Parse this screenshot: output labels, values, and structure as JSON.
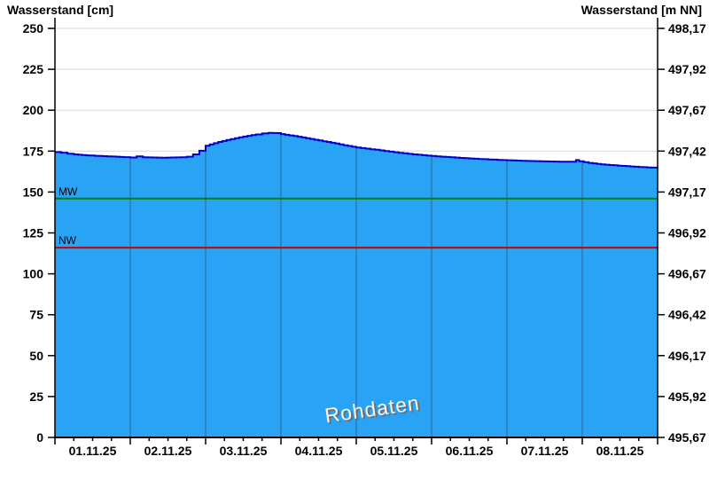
{
  "titles": {
    "left": "Wasserstand [cm]",
    "right": "Wasserstand [m NN]"
  },
  "watermark": "Rohdaten",
  "chart_data": {
    "type": "area",
    "title": "",
    "x_unit": "hours since 01.11.25 00:00",
    "x_range_hours": [
      0,
      192
    ],
    "x_tick_labels": [
      "01.11.25",
      "02.11.25",
      "03.11.25",
      "04.11.25",
      "05.11.25",
      "06.11.25",
      "07.11.25",
      "08.11.25"
    ],
    "x_minor_tick_hours": 6,
    "y_left": {
      "label": "Wasserstand [cm]",
      "min": 0,
      "max": 250,
      "tick_step": 25,
      "tick_labels": [
        "0",
        "25",
        "50",
        "75",
        "100",
        "125",
        "150",
        "175",
        "200",
        "225",
        "250"
      ]
    },
    "y_right": {
      "label": "Wasserstand [m NN]",
      "min": 495.67,
      "max": 498.17,
      "tick_step": 0.25,
      "tick_labels": [
        "495,67",
        "495,92",
        "496,17",
        "496,42",
        "496,67",
        "496,92",
        "497,17",
        "497,42",
        "497,67",
        "497,92",
        "498,17"
      ]
    },
    "reference_lines": [
      {
        "name": "MW",
        "value_cm": 146,
        "color": "#008000"
      },
      {
        "name": "NW",
        "value_cm": 116,
        "color": "#cc0000"
      }
    ],
    "series": [
      {
        "name": "Rohdaten",
        "unit": "cm",
        "points_h_cm": [
          [
            0,
            174.4
          ],
          [
            2,
            174.0
          ],
          [
            4,
            173.4
          ],
          [
            6,
            173.0
          ],
          [
            10,
            172.4
          ],
          [
            14,
            172.0
          ],
          [
            18,
            171.7
          ],
          [
            22,
            171.3
          ],
          [
            24,
            171.1
          ],
          [
            26,
            171.8
          ],
          [
            28,
            171.2
          ],
          [
            34,
            171.0
          ],
          [
            40,
            171.2
          ],
          [
            42,
            171.6
          ],
          [
            44,
            173.0
          ],
          [
            46,
            175.2
          ],
          [
            48,
            178.3
          ],
          [
            52,
            180.6
          ],
          [
            56,
            182.4
          ],
          [
            60,
            183.9
          ],
          [
            64,
            185.2
          ],
          [
            66,
            185.8
          ],
          [
            68,
            186.1
          ],
          [
            71,
            186.0
          ],
          [
            72,
            185.4
          ],
          [
            76,
            184.2
          ],
          [
            80,
            182.9
          ],
          [
            84,
            181.5
          ],
          [
            88,
            180.1
          ],
          [
            92,
            178.6
          ],
          [
            96,
            177.2
          ],
          [
            102,
            175.8
          ],
          [
            108,
            174.3
          ],
          [
            114,
            173.0
          ],
          [
            120,
            172.0
          ],
          [
            126,
            171.2
          ],
          [
            132,
            170.5
          ],
          [
            138,
            169.9
          ],
          [
            144,
            169.4
          ],
          [
            150,
            169.0
          ],
          [
            156,
            168.7
          ],
          [
            162,
            168.5
          ],
          [
            165,
            168.5
          ],
          [
            166,
            169.5
          ],
          [
            167,
            168.8
          ],
          [
            170,
            167.8
          ],
          [
            174,
            166.9
          ],
          [
            178,
            166.3
          ],
          [
            182,
            165.8
          ],
          [
            186,
            165.3
          ],
          [
            190,
            164.9
          ],
          [
            192,
            164.7
          ]
        ]
      }
    ],
    "colors": {
      "area_fill": "#29a4f5",
      "area_edge": "#0000cd",
      "grid_horizontal": "#d8d8d8",
      "grid_vertical_in_area": "#33658f",
      "axis": "#000000",
      "mw_line": "#008000",
      "nw_line": "#cc0000",
      "watermark_fill": "#f7f7f7",
      "watermark_shadow": "#6e6e6e"
    },
    "legend_position": "none",
    "grid": true
  }
}
